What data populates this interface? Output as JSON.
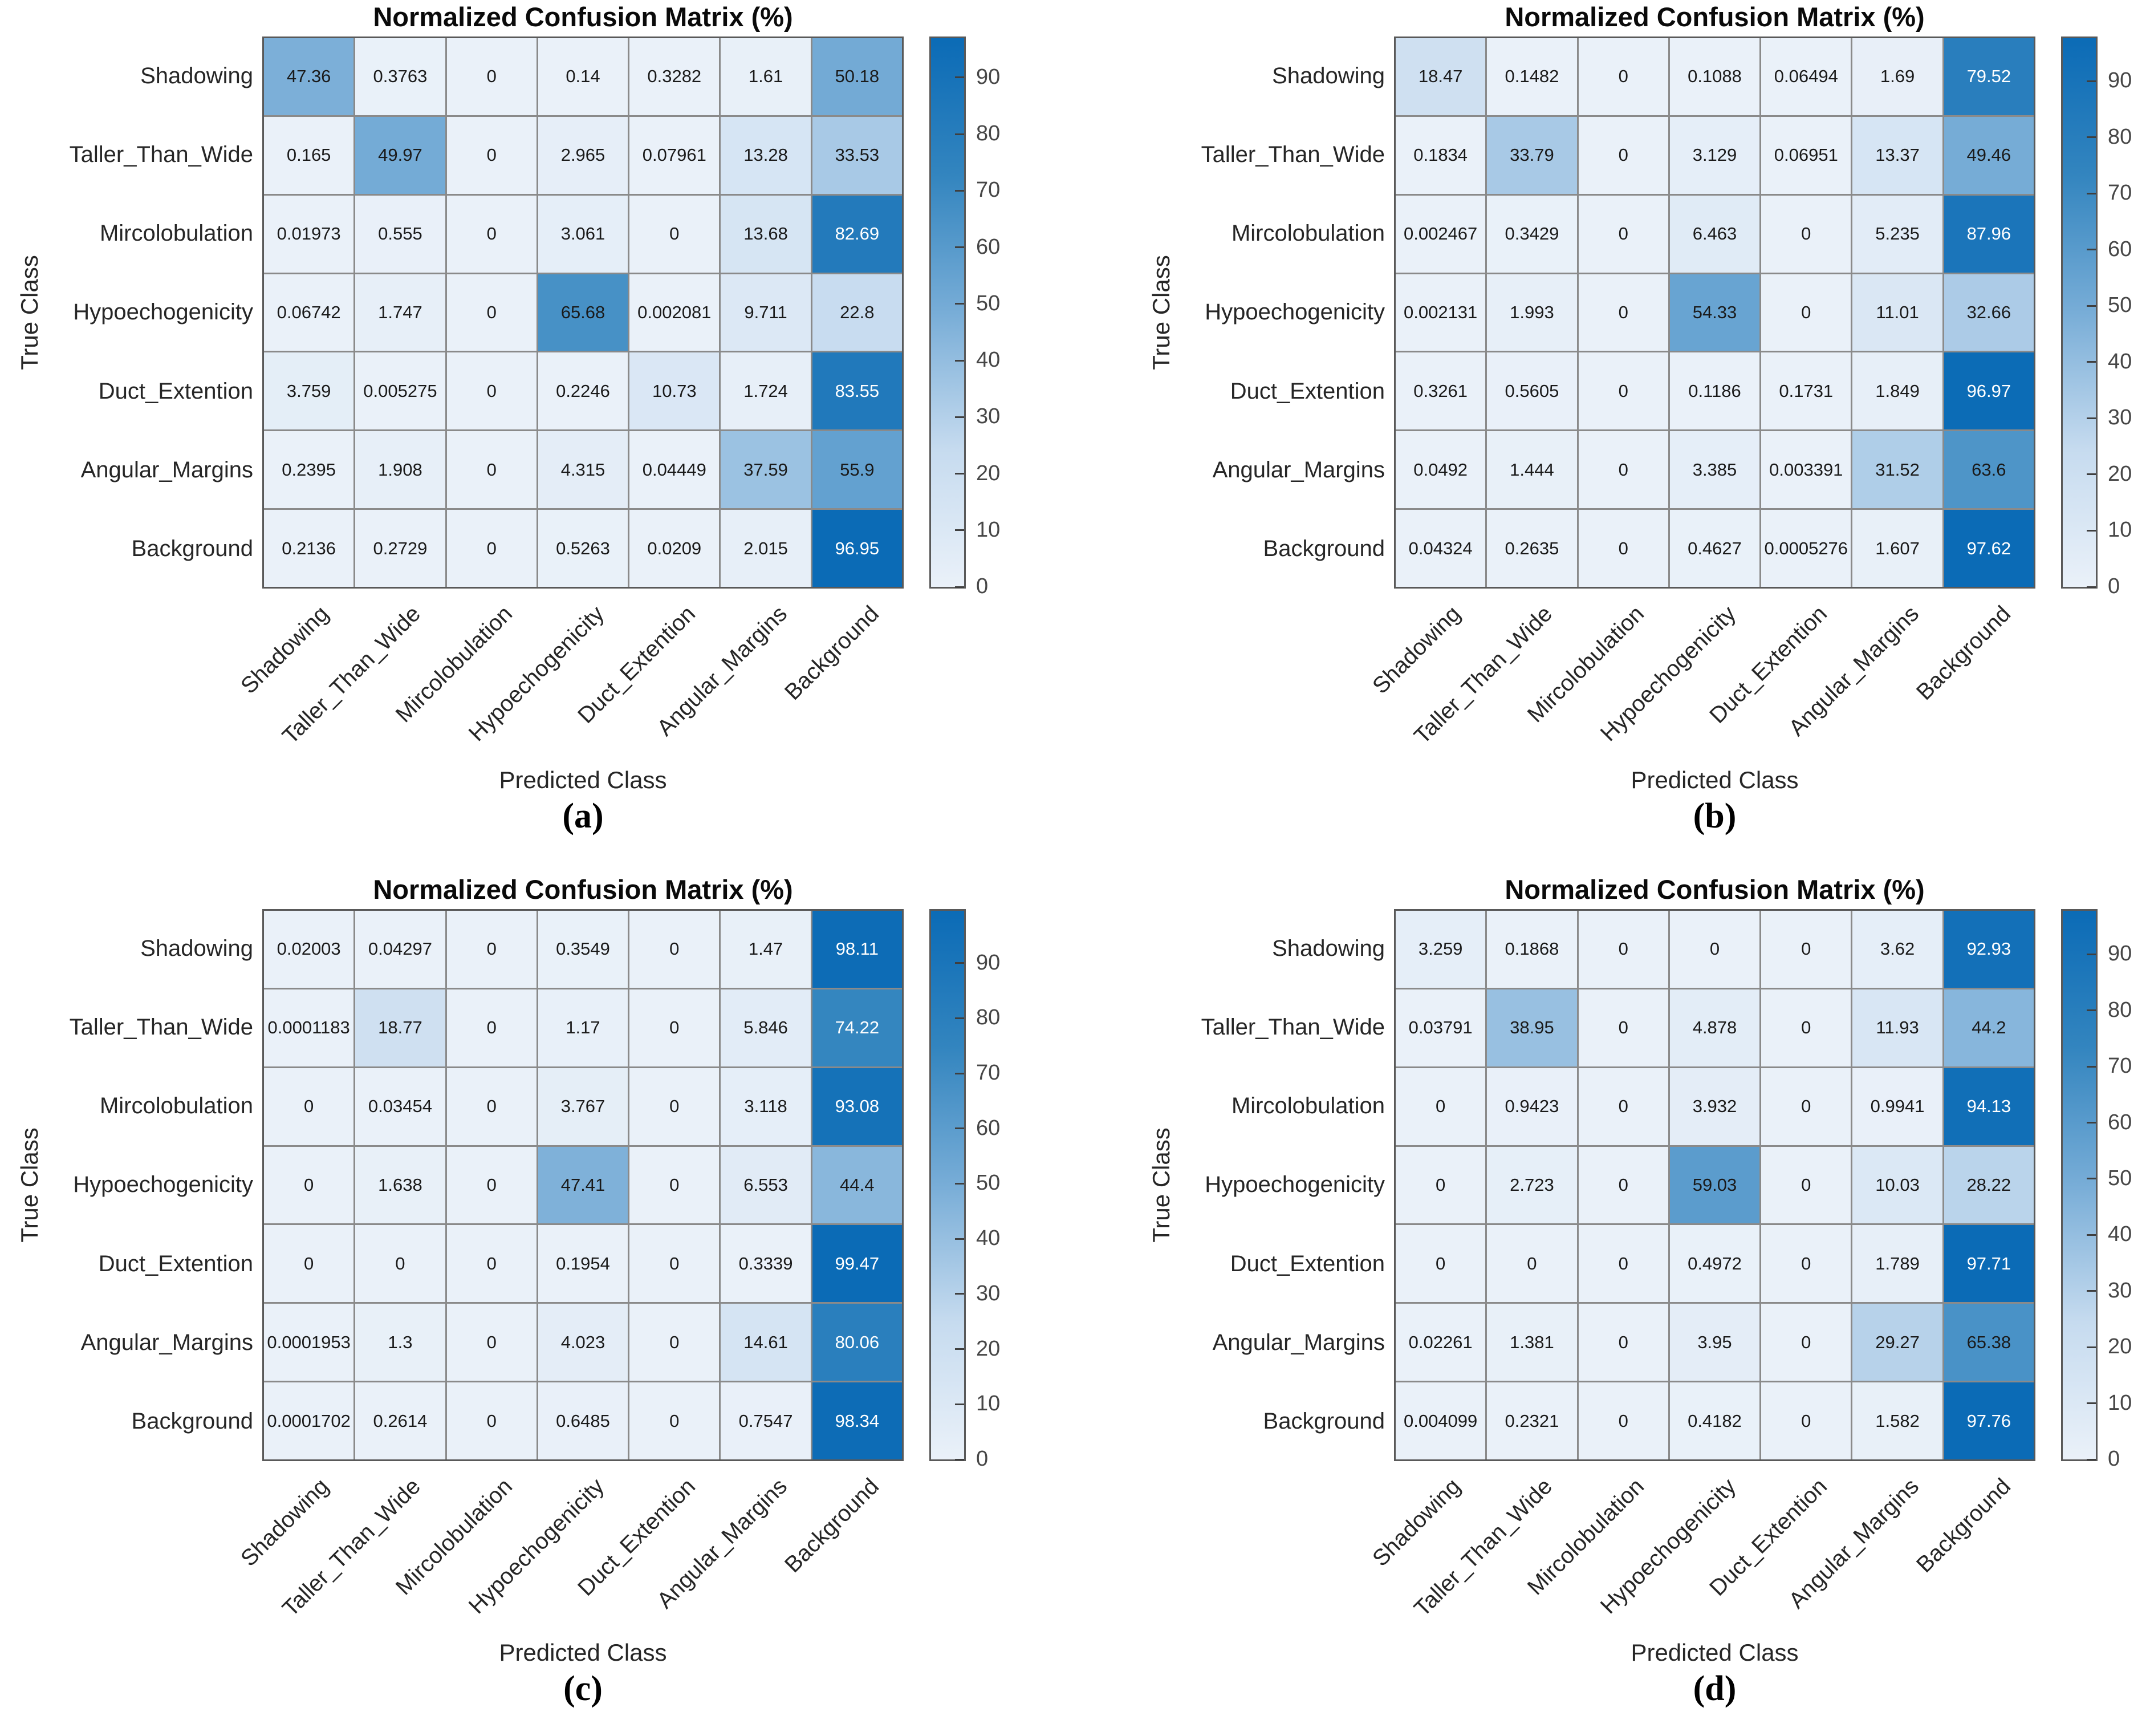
{
  "figure": {
    "panel_title": "Normalized Confusion Matrix (%)",
    "xlabel": "Predicted Class",
    "ylabel": "True Class",
    "classes": [
      "Shadowing",
      "Taller_Than_Wide",
      "Mircolobulation",
      "Hypoechogenicity",
      "Duct_Extention",
      "Angular_Margins",
      "Background"
    ],
    "colorbar_ticks": [
      0,
      10,
      20,
      30,
      40,
      50,
      60,
      70,
      80,
      90
    ],
    "colors": {
      "colormap_anchors": [
        "#eaf1f9",
        "#c6dbef",
        "#78add7",
        "#3385bf",
        "#0b6bb6"
      ],
      "grid_line": "#8a8a8a",
      "axes_border": "#595959",
      "cell_text_dark": "#1a1a1a",
      "cell_text_light": "#ffffff",
      "tick_label": "#474747"
    }
  },
  "chart_data": [
    {
      "id": "a",
      "type": "heatmap",
      "caption": "(a)",
      "title": "Normalized Confusion Matrix (%)",
      "xlabel": "Predicted Class",
      "ylabel": "True Class",
      "categories": [
        "Shadowing",
        "Taller_Than_Wide",
        "Mircolobulation",
        "Hypoechogenicity",
        "Duct_Extention",
        "Angular_Margins",
        "Background"
      ],
      "colorbar_range": [
        0,
        96.95
      ],
      "legend_position": "right-colorbar",
      "matrix": [
        [
          "47.36",
          "0.3763",
          "0",
          "0.14",
          "0.3282",
          "1.61",
          "50.18"
        ],
        [
          "0.165",
          "49.97",
          "0",
          "2.965",
          "0.07961",
          "13.28",
          "33.53"
        ],
        [
          "0.01973",
          "0.555",
          "0",
          "3.061",
          "0",
          "13.68",
          "82.69"
        ],
        [
          "0.06742",
          "1.747",
          "0",
          "65.68",
          "0.002081",
          "9.711",
          "22.8"
        ],
        [
          "3.759",
          "0.005275",
          "0",
          "0.2246",
          "10.73",
          "1.724",
          "83.55"
        ],
        [
          "0.2395",
          "1.908",
          "0",
          "4.315",
          "0.04449",
          "37.59",
          "55.9"
        ],
        [
          "0.2136",
          "0.2729",
          "0",
          "0.5263",
          "0.0209",
          "2.015",
          "96.95"
        ]
      ]
    },
    {
      "id": "b",
      "type": "heatmap",
      "caption": "(b)",
      "title": "Normalized Confusion Matrix (%)",
      "xlabel": "Predicted Class",
      "ylabel": "True Class",
      "categories": [
        "Shadowing",
        "Taller_Than_Wide",
        "Mircolobulation",
        "Hypoechogenicity",
        "Duct_Extention",
        "Angular_Margins",
        "Background"
      ],
      "colorbar_range": [
        0,
        97.62
      ],
      "legend_position": "right-colorbar",
      "matrix": [
        [
          "18.47",
          "0.1482",
          "0",
          "0.1088",
          "0.06494",
          "1.69",
          "79.52"
        ],
        [
          "0.1834",
          "33.79",
          "0",
          "3.129",
          "0.06951",
          "13.37",
          "49.46"
        ],
        [
          "0.002467",
          "0.3429",
          "0",
          "6.463",
          "0",
          "5.235",
          "87.96"
        ],
        [
          "0.002131",
          "1.993",
          "0",
          "54.33",
          "0",
          "11.01",
          "32.66"
        ],
        [
          "0.3261",
          "0.5605",
          "0",
          "0.1186",
          "0.1731",
          "1.849",
          "96.97"
        ],
        [
          "0.0492",
          "1.444",
          "0",
          "3.385",
          "0.003391",
          "31.52",
          "63.6"
        ],
        [
          "0.04324",
          "0.2635",
          "0",
          "0.4627",
          "0.0005276",
          "1.607",
          "97.62"
        ]
      ]
    },
    {
      "id": "c",
      "type": "heatmap",
      "caption": "(c)",
      "title": "Normalized Confusion Matrix (%)",
      "xlabel": "Predicted Class",
      "ylabel": "True Class",
      "categories": [
        "Shadowing",
        "Taller_Than_Wide",
        "Mircolobulation",
        "Hypoechogenicity",
        "Duct_Extention",
        "Angular_Margins",
        "Background"
      ],
      "colorbar_range": [
        0,
        99.47
      ],
      "legend_position": "right-colorbar",
      "matrix": [
        [
          "0.02003",
          "0.04297",
          "0",
          "0.3549",
          "0",
          "1.47",
          "98.11"
        ],
        [
          "0.0001183",
          "18.77",
          "0",
          "1.17",
          "0",
          "5.846",
          "74.22"
        ],
        [
          "0",
          "0.03454",
          "0",
          "3.767",
          "0",
          "3.118",
          "93.08"
        ],
        [
          "0",
          "1.638",
          "0",
          "47.41",
          "0",
          "6.553",
          "44.4"
        ],
        [
          "0",
          "0",
          "0",
          "0.1954",
          "0",
          "0.3339",
          "99.47"
        ],
        [
          "0.0001953",
          "1.3",
          "0",
          "4.023",
          "0",
          "14.61",
          "80.06"
        ],
        [
          "0.0001702",
          "0.2614",
          "0",
          "0.6485",
          "0",
          "0.7547",
          "98.34"
        ]
      ]
    },
    {
      "id": "d",
      "type": "heatmap",
      "caption": "(d)",
      "title": "Normalized Confusion Matrix (%)",
      "xlabel": "Predicted Class",
      "ylabel": "True Class",
      "categories": [
        "Shadowing",
        "Taller_Than_Wide",
        "Mircolobulation",
        "Hypoechogenicity",
        "Duct_Extention",
        "Angular_Margins",
        "Background"
      ],
      "colorbar_range": [
        0,
        97.76
      ],
      "legend_position": "right-colorbar",
      "matrix": [
        [
          "3.259",
          "0.1868",
          "0",
          "0",
          "0",
          "3.62",
          "92.93"
        ],
        [
          "0.03791",
          "38.95",
          "0",
          "4.878",
          "0",
          "11.93",
          "44.2"
        ],
        [
          "0",
          "0.9423",
          "0",
          "3.932",
          "0",
          "0.9941",
          "94.13"
        ],
        [
          "0",
          "2.723",
          "0",
          "59.03",
          "0",
          "10.03",
          "28.22"
        ],
        [
          "0",
          "0",
          "0",
          "0.4972",
          "0",
          "1.789",
          "97.71"
        ],
        [
          "0.02261",
          "1.381",
          "0",
          "3.95",
          "0",
          "29.27",
          "65.38"
        ],
        [
          "0.004099",
          "0.2321",
          "0",
          "0.4182",
          "0",
          "1.582",
          "97.76"
        ]
      ]
    }
  ]
}
